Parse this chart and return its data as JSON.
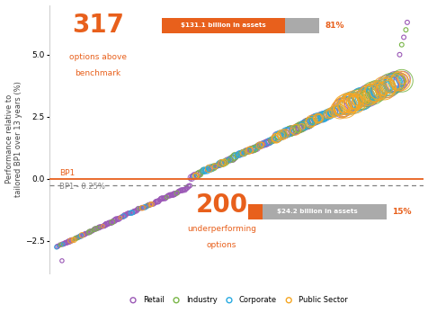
{
  "ylabel": "Performance relative to\ntailored BP1 over 13 years (%)",
  "ylim": [
    -3.8,
    7.0
  ],
  "xlim": [
    0,
    540
  ],
  "bp1_y": 0.0,
  "bp1_label": "BP1",
  "bp1_minus_y": -0.25,
  "bp1_minus_label": "BP1 - 0.25%",
  "colors": {
    "retail": "#9B59B6",
    "industry": "#7AB648",
    "corporate": "#27AAE1",
    "public_sector": "#F5A623"
  },
  "orange_color": "#E8601C",
  "bar_orange": "#E8601C",
  "bar_gray": "#AAAAAA",
  "above_number": "317",
  "above_text1": "options above",
  "above_text2": "benchmark",
  "above_assets": "$131.1 billion in assets",
  "above_pct": "81%",
  "below_number": "200",
  "below_text1": "underperforming",
  "below_text2": "options",
  "below_assets": "$24.2 billion in assets",
  "below_pct": "15%",
  "background": "#FFFFFF"
}
